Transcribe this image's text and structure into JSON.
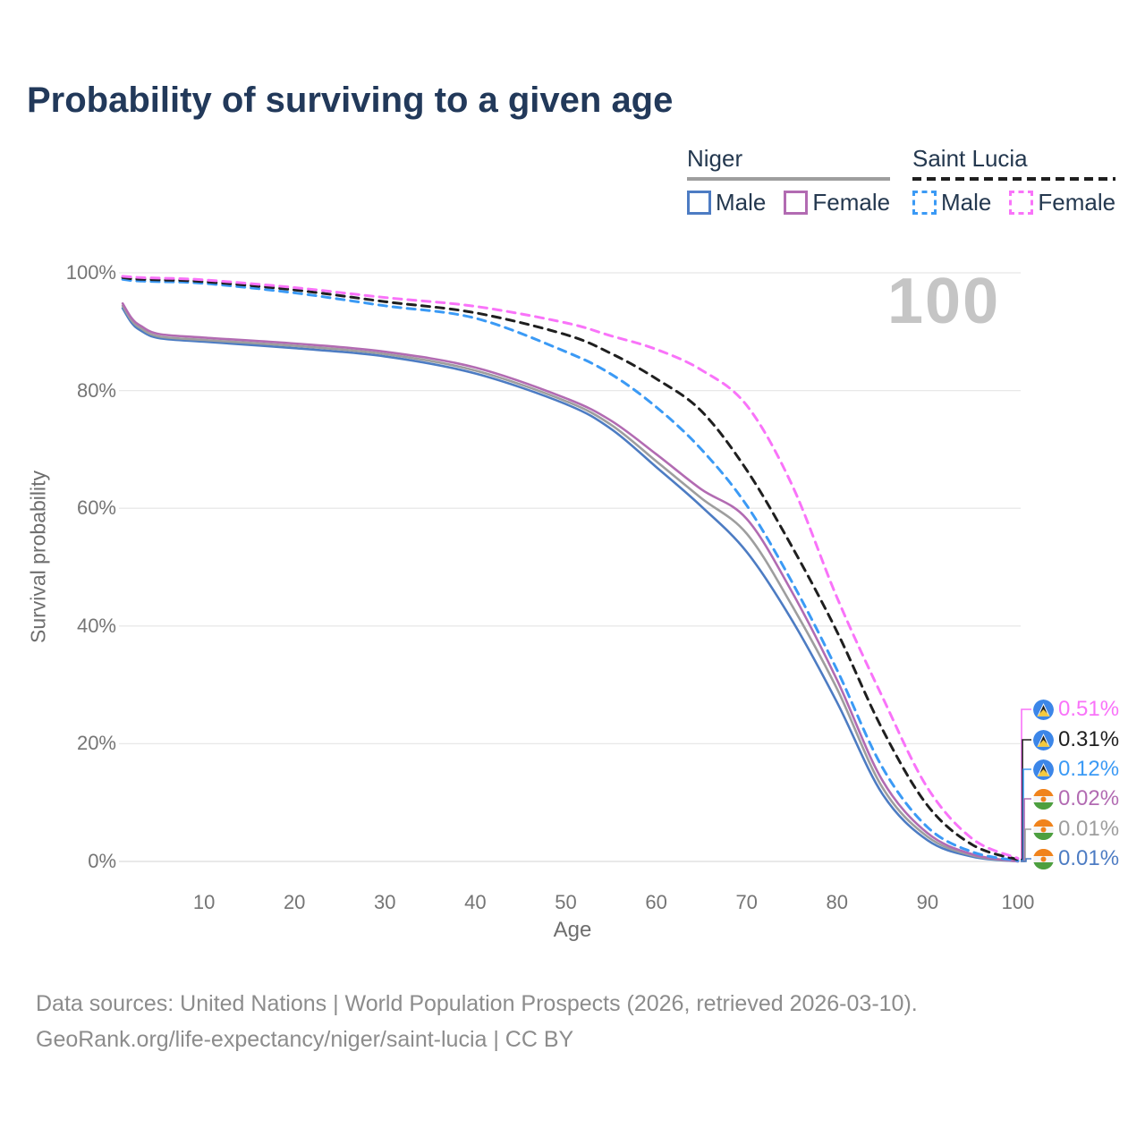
{
  "title": "Probability of surviving to a given age",
  "watermark": "100",
  "colors": {
    "niger_male": "#4d7cc3",
    "niger_total": "#9e9e9e",
    "niger_female": "#b26bb2",
    "saintlucia_male": "#3b9af5",
    "saintlucia_total": "#1f1f1f",
    "saintlucia_female": "#f973f9",
    "grid": "#e8e8e8",
    "axis_text": "#757575",
    "title_text": "#22395a",
    "watermark_text": "#c5c5c5"
  },
  "legend": {
    "groups": [
      {
        "label": "Niger",
        "line_style": "solid",
        "items": [
          {
            "label": "Male",
            "color": "#4d7cc3",
            "dash": false
          },
          {
            "label": "Female",
            "color": "#b26bb2",
            "dash": false
          }
        ]
      },
      {
        "label": "Saint Lucia",
        "line_style": "dashed",
        "items": [
          {
            "label": "Male",
            "color": "#3b9af5",
            "dash": true
          },
          {
            "label": "Female",
            "color": "#f973f9",
            "dash": true
          }
        ]
      }
    ]
  },
  "axes": {
    "ylabel": "Survival probability",
    "xlabel": "Age",
    "y_ticks": [
      {
        "value": 0,
        "label": "0%"
      },
      {
        "value": 20,
        "label": "20%"
      },
      {
        "value": 40,
        "label": "40%"
      },
      {
        "value": 60,
        "label": "60%"
      },
      {
        "value": 80,
        "label": "80%"
      },
      {
        "value": 100,
        "label": "100%"
      }
    ],
    "x_ticks": [
      10,
      20,
      30,
      40,
      50,
      60,
      70,
      80,
      90,
      100
    ]
  },
  "chart_data": {
    "type": "line",
    "title": "Probability of surviving to a given age",
    "xlabel": "Age",
    "ylabel": "Survival probability",
    "xlim": [
      0,
      100
    ],
    "ylim": [
      0,
      100
    ],
    "grid": "horizontal",
    "legend_position": "top-right",
    "x": [
      1,
      2,
      3,
      5,
      10,
      20,
      30,
      40,
      50,
      55,
      60,
      65,
      70,
      75,
      80,
      85,
      90,
      95,
      100
    ],
    "series": [
      {
        "name": "Niger Male",
        "country": "Niger",
        "sex": "Male",
        "style": "solid",
        "color": "#4d7cc3",
        "values": [
          94.0,
          91.5,
          90.2,
          88.9,
          88.3,
          87.2,
          85.8,
          82.9,
          77.7,
          73.5,
          67.0,
          60.3,
          52.6,
          41.0,
          27.0,
          11.5,
          3.6,
          0.8,
          0.01
        ],
        "end_label": "0.01%"
      },
      {
        "name": "Niger Both sexes",
        "country": "Niger",
        "sex": "Both",
        "style": "solid",
        "color": "#9e9e9e",
        "values": [
          94.4,
          91.9,
          90.6,
          89.2,
          88.6,
          87.6,
          86.2,
          83.4,
          78.2,
          74.2,
          68.0,
          61.7,
          55.7,
          43.5,
          29.3,
          12.6,
          4.2,
          1.0,
          0.01
        ],
        "end_label": "0.01%"
      },
      {
        "name": "Niger Female",
        "country": "Niger",
        "sex": "Female",
        "style": "solid",
        "color": "#b26bb2",
        "values": [
          94.8,
          92.3,
          91.0,
          89.6,
          89.0,
          88.0,
          86.6,
          83.9,
          78.7,
          74.9,
          69.2,
          63.2,
          58.2,
          45.8,
          30.8,
          13.8,
          4.8,
          1.2,
          0.02
        ],
        "end_label": "0.02%"
      },
      {
        "name": "Saint Lucia Male",
        "country": "Saint Lucia",
        "sex": "Male",
        "style": "dashed",
        "color": "#3b9af5",
        "values": [
          98.9,
          98.7,
          98.6,
          98.5,
          98.2,
          96.6,
          94.4,
          92.3,
          86.6,
          82.8,
          77.2,
          70.0,
          60.5,
          47.5,
          32.5,
          16.0,
          5.8,
          1.6,
          0.12
        ],
        "end_label": "0.12%"
      },
      {
        "name": "Saint Lucia Both sexes",
        "country": "Saint Lucia",
        "sex": "Both",
        "style": "dashed",
        "color": "#1f1f1f",
        "values": [
          99.2,
          99.0,
          98.9,
          98.8,
          98.5,
          97.1,
          95.1,
          93.2,
          89.5,
          86.3,
          82.0,
          76.5,
          66.5,
          53.5,
          39.0,
          22.5,
          9.5,
          2.8,
          0.31
        ],
        "end_label": "0.31%"
      },
      {
        "name": "Saint Lucia Female",
        "country": "Saint Lucia",
        "sex": "Female",
        "style": "dashed",
        "color": "#f973f9",
        "values": [
          99.4,
          99.3,
          99.2,
          99.1,
          98.8,
          97.5,
          95.8,
          94.3,
          91.5,
          89.3,
          87.0,
          83.5,
          77.5,
          64.0,
          44.8,
          28.0,
          12.5,
          3.8,
          0.51
        ],
        "end_label": "0.51%"
      }
    ],
    "end_labels": [
      {
        "text": "0.51%",
        "color": "#f973f9",
        "flag": "saint-lucia",
        "series": "Saint Lucia Female"
      },
      {
        "text": "0.31%",
        "color": "#1f1f1f",
        "flag": "saint-lucia",
        "series": "Saint Lucia Both sexes"
      },
      {
        "text": "0.12%",
        "color": "#3b9af5",
        "flag": "saint-lucia",
        "series": "Saint Lucia Male"
      },
      {
        "text": "0.02%",
        "color": "#b26bb2",
        "flag": "niger",
        "series": "Niger Female"
      },
      {
        "text": "0.01%",
        "color": "#9e9e9e",
        "flag": "niger",
        "series": "Niger Both sexes"
      },
      {
        "text": "0.01%",
        "color": "#4d7cc3",
        "flag": "niger",
        "series": "Niger Male"
      }
    ]
  },
  "footer": {
    "line1": "Data sources: United Nations | World Population Prospects (2026, retrieved 2026-03-10).",
    "line2": "GeoRank.org/life-expectancy/niger/saint-lucia | CC BY"
  }
}
